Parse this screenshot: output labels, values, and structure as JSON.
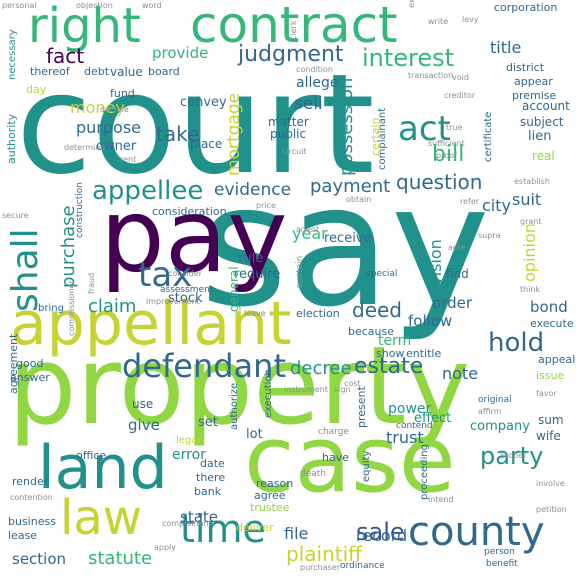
{
  "palette": {
    "dark_purple": "#440154",
    "indigo": "#3b528b",
    "blue": "#31688e",
    "teal": "#21918c",
    "green": "#35b779",
    "lime": "#90d743",
    "yellow": "#c7d333",
    "gray": "#8a8f99"
  },
  "words": {
    "court": "court",
    "say": "say",
    "property": "property",
    "case": "case",
    "pay": "pay",
    "appellant": "appellant",
    "right": "right",
    "contract": "contract",
    "land": "land",
    "county": "county",
    "law": "law",
    "time": "time",
    "defendant": "defendant",
    "tax": "tax",
    "shall": "shall",
    "appellee": "appellee",
    "act": "act",
    "judgment": "judgment",
    "interest": "interest",
    "fact": "fact",
    "evidence": "evidence",
    "payment": "payment",
    "question": "question",
    "sale": "sale",
    "plaintiff": "plaintiff",
    "estate": "estate",
    "hold": "hold",
    "party": "party",
    "decree": "decree",
    "statute": "statute",
    "deed": "deed",
    "bill": "bill",
    "possession": "possession",
    "take": "take",
    "mortgage": "mortgage",
    "purchase": "purchase",
    "claim": "claim",
    "purpose": "purpose",
    "money": "money",
    "sell": "sell",
    "provide": "provide",
    "title": "title",
    "opinion": "opinion",
    "provision": "provision",
    "suit": "suit",
    "city": "city",
    "bond": "bond",
    "order": "order",
    "follow": "follow",
    "note": "note",
    "year": "year",
    "record": "record",
    "trust": "trust",
    "section": "section",
    "state": "state",
    "file": "file",
    "give": "give",
    "error": "error",
    "power": "power",
    "term": "term",
    "effect": "effect",
    "company": "company",
    "receive": "receive",
    "require": "require",
    "rule": "rule",
    "stock": "stock",
    "general": "general",
    "owner": "owner",
    "value": "value",
    "fund": "fund",
    "convey": "convey",
    "matter": "matter",
    "public": "public",
    "place": "place",
    "allege": "allege",
    "board": "board",
    "debt": "debt",
    "thereof": "thereof",
    "necessary": "necessary",
    "day": "day",
    "authority": "authority",
    "account": "account",
    "subject": "subject",
    "lien": "lien",
    "real": "real",
    "certain": "certain",
    "certificate": "certificate",
    "complainant": "complainant",
    "district": "district",
    "appear": "appear",
    "premise": "premise",
    "corporation": "corporation",
    "consideration": "consideration",
    "price": "price",
    "obtain": "obtain",
    "agent": "agent",
    "assessment": "assessment",
    "construction": "construction",
    "bring": "bring",
    "fraud": "fraud",
    "sustain": "sustain",
    "special": "special",
    "find": "find",
    "because": "because",
    "election": "election",
    "show": "show",
    "entitle": "entitle",
    "execute": "execute",
    "appeal": "appeal",
    "issue": "issue",
    "good": "good",
    "answer": "answer",
    "commissioner": "commissioner",
    "agreement": "agreement",
    "use": "use",
    "legal": "legal",
    "set": "set",
    "lot": "lot",
    "authorize": "authorize",
    "execution": "execution",
    "charge": "charge",
    "present": "present",
    "original": "original",
    "contend": "contend",
    "sum": "sum",
    "wife": "wife",
    "office": "office",
    "date": "date",
    "there": "there",
    "bank": "bank",
    "reason": "reason",
    "agree": "agree",
    "have": "have",
    "death": "death",
    "equity": "equity",
    "proceeding": "proceeding",
    "render": "render",
    "contention": "contention",
    "trustee": "trustee",
    "business": "business",
    "lease": "lease",
    "complainant2": "complainant",
    "deliver": "deliver",
    "ordinance": "ordinance",
    "person": "person",
    "benefit": "benefit",
    "petition": "petition",
    "involve": "involve",
    "personal": "personal",
    "objection": "objection",
    "word": "word",
    "write": "write",
    "levy": "levy",
    "transaction": "transaction",
    "express": "express",
    "clerk": "clerk",
    "condition": "condition",
    "void": "void",
    "creditor": "creditor",
    "circuit": "circuit",
    "decline": "decline",
    "determine": "determine",
    "rent": "rent",
    "cost": "cost",
    "establish": "establish",
    "grant": "grant",
    "refer": "refer",
    "supra": "supra",
    "acre": "acre",
    "think": "think",
    "secure": "secure",
    "consider": "consider",
    "improvement": "improvement",
    "leave": "leave",
    "instrument": "instrument",
    "sign": "sign",
    "favor": "favor",
    "proper": "proper",
    "intend": "intend",
    "apply": "apply",
    "purchaser": "purchaser",
    "affirm": "affirm",
    "sufficient": "sufficient",
    "proof": "proof",
    "true": "true"
  }
}
